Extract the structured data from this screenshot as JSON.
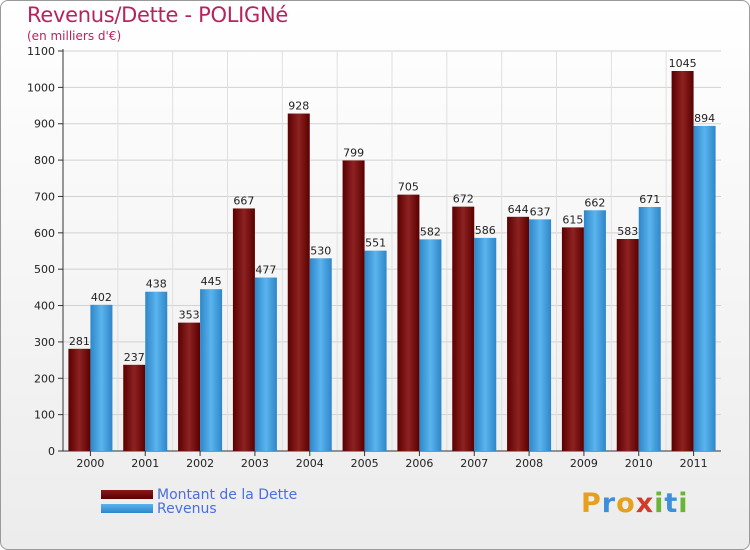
{
  "header": {
    "title": "Revenus/Dette - POLIGNé",
    "subtitle": "(en milliers d'€)"
  },
  "legend": {
    "dette_label": "Montant de la Dette",
    "revenus_label": "Revenus"
  },
  "logo": {
    "letters": [
      "P",
      "r",
      "o",
      "x",
      "i",
      "t",
      "i"
    ],
    "colors": [
      "#e6a01e",
      "#3d8fd8",
      "#e6a01e",
      "#d23b2a",
      "#6bb536",
      "#3d8fd8",
      "#6bb536"
    ]
  },
  "colors": {
    "dette": "#7a1010",
    "revenus": "#3d9be3",
    "title": "#b5245d",
    "legend_text": "#4a6ee0"
  },
  "chart_data": {
    "type": "bar",
    "title": "Revenus/Dette - POLIGNé",
    "ylabel": "(en milliers d'€)",
    "xlabel": "",
    "ylim": [
      0,
      1100
    ],
    "yticks": [
      0,
      100,
      200,
      300,
      400,
      500,
      600,
      700,
      800,
      900,
      1000,
      1100
    ],
    "grid": true,
    "legend_position": "bottom-left",
    "categories": [
      "2000",
      "2001",
      "2002",
      "2003",
      "2004",
      "2005",
      "2006",
      "2007",
      "2008",
      "2009",
      "2010",
      "2011"
    ],
    "series": [
      {
        "name": "Montant de la Dette",
        "values": [
          281,
          237,
          353,
          667,
          928,
          799,
          705,
          672,
          644,
          615,
          583,
          1045
        ]
      },
      {
        "name": "Revenus",
        "values": [
          402,
          438,
          445,
          477,
          530,
          551,
          582,
          586,
          637,
          662,
          671,
          894
        ]
      }
    ]
  }
}
